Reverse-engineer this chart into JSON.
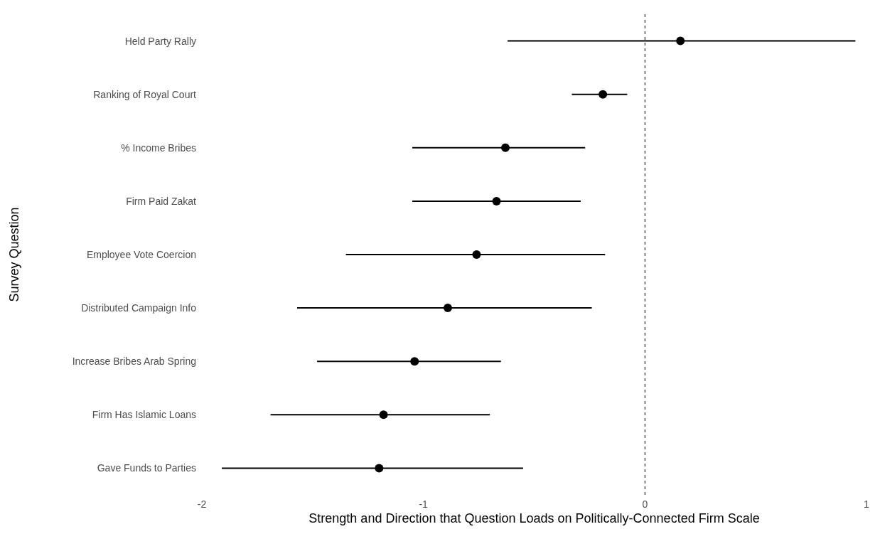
{
  "chart_data": {
    "type": "scatter",
    "xlabel": "Strength and Direction that Question Loads on Politically-Connected Firm Scale",
    "ylabel": "Survey Question",
    "categories": [
      "Held Party Rally",
      "Ranking of Royal Court",
      "% Income Bribes",
      "Firm Paid Zakat",
      "Employee Vote Coercion",
      "Distributed Campaign Info",
      "Increase Bribes Arab Spring",
      "Firm Has Islamic Loans",
      "Gave Funds to Parties"
    ],
    "orientation": "horizontal",
    "values": [
      0.16,
      -0.19,
      -0.63,
      -0.67,
      -0.76,
      -0.89,
      -1.04,
      -1.18,
      -1.2
    ],
    "errors": [
      [
        -0.62,
        0.95
      ],
      [
        -0.33,
        -0.08
      ],
      [
        -1.05,
        -0.27
      ],
      [
        -1.05,
        -0.29
      ],
      [
        -1.35,
        -0.18
      ],
      [
        -1.57,
        -0.24
      ],
      [
        -1.48,
        -0.65
      ],
      [
        -1.69,
        -0.7
      ],
      [
        -1.91,
        -0.55
      ]
    ],
    "color": "#000000",
    "marker": "circle",
    "xlim": [
      -2,
      1
    ],
    "xticks": [
      -2,
      -1,
      0,
      1
    ],
    "ref_lines": [
      {
        "axis": "x",
        "value": 0,
        "line_style": "dashed"
      }
    ]
  }
}
